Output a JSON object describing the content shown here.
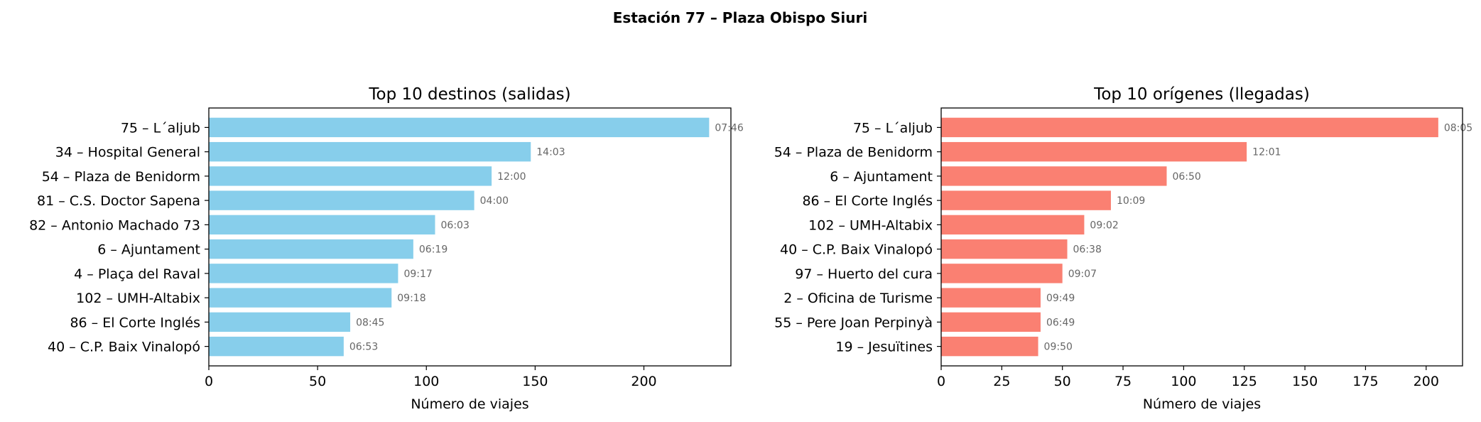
{
  "figure": {
    "suptitle": "Estación 77 – Plaza Obispo Siuri"
  },
  "chart_data": [
    {
      "type": "bar",
      "orientation": "horizontal",
      "title": "Top 10 destinos (salidas)",
      "xlabel": "Número de viajes",
      "ylabel": "",
      "xlim": [
        0,
        240
      ],
      "xticks": [
        "0",
        "50",
        "100",
        "150",
        "200"
      ],
      "xtick_values": [
        0,
        50,
        100,
        150,
        200
      ],
      "color": "#87ceeb",
      "categories": [
        "75 – L´aljub",
        "34 – Hospital General",
        "54 – Plaza de Benidorm",
        "81 – C.S. Doctor Sapena",
        "82 – Antonio Machado 73",
        "6 – Ajuntament",
        "4 – Plaça del Raval",
        "102 – UMH-Altabix",
        "86 – El Corte Inglés",
        "40 – C.P. Baix Vinalopó"
      ],
      "values": [
        230,
        148,
        130,
        122,
        104,
        94,
        87,
        84,
        65,
        62
      ],
      "annotations": [
        "07:46",
        "14:03",
        "12:00",
        "04:00",
        "06:03",
        "06:19",
        "09:17",
        "09:18",
        "08:45",
        "06:53"
      ]
    },
    {
      "type": "bar",
      "orientation": "horizontal",
      "title": "Top 10 orígenes (llegadas)",
      "xlabel": "Número de viajes",
      "ylabel": "",
      "xlim": [
        0,
        215
      ],
      "xticks": [
        "0",
        "25",
        "50",
        "75",
        "100",
        "125",
        "150",
        "175",
        "200"
      ],
      "xtick_values": [
        0,
        25,
        50,
        75,
        100,
        125,
        150,
        175,
        200
      ],
      "color": "#fa8072",
      "categories": [
        "75 – L´aljub",
        "54 – Plaza de Benidorm",
        "6 – Ajuntament",
        "86 – El Corte Inglés",
        "102 – UMH-Altabix",
        "40 – C.P. Baix Vinalopó",
        "97 – Huerto del cura",
        "2 – Oficina de Turisme",
        "55 – Pere Joan Perpinyà",
        "19 – Jesuïtines"
      ],
      "values": [
        205,
        126,
        93,
        70,
        59,
        52,
        50,
        41,
        41,
        40
      ],
      "annotations": [
        "08:05",
        "12:01",
        "06:50",
        "10:09",
        "09:02",
        "06:38",
        "09:07",
        "09:49",
        "06:49",
        "09:50"
      ]
    }
  ]
}
